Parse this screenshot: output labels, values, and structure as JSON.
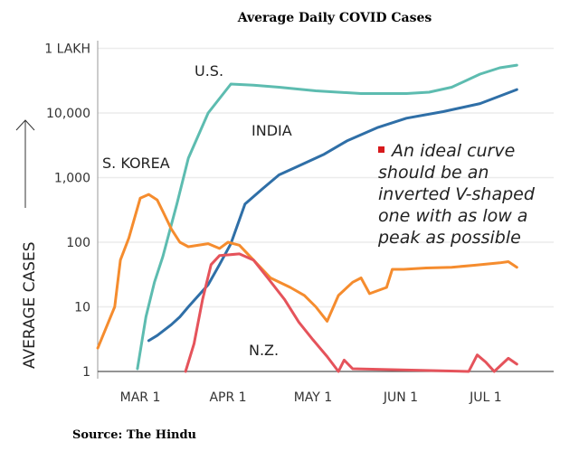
{
  "chart_data": {
    "type": "line",
    "title": "Average Daily COVID Cases",
    "ylabel": "AVERAGE CASES",
    "yscale": "log",
    "ylim": [
      1,
      100000
    ],
    "yticks": [
      1,
      10,
      100,
      1000,
      10000,
      100000
    ],
    "ytick_labels": [
      "1",
      "10",
      "100",
      "1,000",
      "10,000",
      "1 LAKH"
    ],
    "xlim": [
      "Feb 15",
      "Jul 20"
    ],
    "xticks": [
      "Mar 1",
      "Apr 1",
      "May 1",
      "Jun 1",
      "Jul 1"
    ],
    "xtick_labels": [
      "MAR 1",
      "APR 1",
      "MAY 1",
      "JUN 1",
      "JUL 1"
    ],
    "grid": true,
    "series": [
      {
        "name": "U.S.",
        "color": "#5dbcb0",
        "x": [
          "Feb 29",
          "Mar 3",
          "Mar 6",
          "Mar 9",
          "Mar 14",
          "Mar 18",
          "Mar 25",
          "Apr 2",
          "Apr 10",
          "Apr 19",
          "May 2",
          "May 18",
          "Jun 3",
          "Jun 11",
          "Jun 19",
          "Jun 29",
          "Jul 6",
          "Jul 12"
        ],
        "y": [
          1.1,
          7,
          24,
          60,
          400,
          2000,
          10000,
          28000,
          27000,
          25000,
          22000,
          20000,
          20000,
          21000,
          25000,
          40000,
          50000,
          55000
        ]
      },
      {
        "name": "INDIA",
        "color": "#2f6fa7",
        "x": [
          "Mar 4",
          "Mar 7",
          "Mar 12",
          "Mar 15",
          "Mar 18",
          "Mar 25",
          "Mar 29",
          "Apr 2",
          "Apr 7",
          "Apr 13",
          "Apr 19",
          "Apr 25",
          "May 5",
          "May 13",
          "May 24",
          "Jun 3",
          "Jun 16",
          "Jun 29",
          "Jul 12"
        ],
        "y": [
          3,
          3.6,
          5.3,
          7,
          10,
          22,
          45,
          95,
          390,
          660,
          1100,
          1450,
          2300,
          3700,
          6000,
          8300,
          10500,
          14000,
          23000
        ]
      },
      {
        "name": "S. KOREA",
        "color": "#f58c2e",
        "x": [
          "Feb 15",
          "Feb 21",
          "Feb 23",
          "Feb 26",
          "Mar 1",
          "Mar 4",
          "Mar 7",
          "Mar 9",
          "Mar 12",
          "Mar 15",
          "Mar 18",
          "Mar 25",
          "Mar 29",
          "Apr 1",
          "Apr 5",
          "Apr 10",
          "Apr 16",
          "Apr 23",
          "Apr 28",
          "May 2",
          "May 6",
          "May 10",
          "May 15",
          "May 18",
          "May 21",
          "May 27",
          "May 29",
          "Jun 2",
          "Jun 10",
          "Jun 19",
          "Jun 27",
          "Jul 6",
          "Jul 9",
          "Jul 12"
        ],
        "y": [
          2.3,
          10,
          53,
          117,
          480,
          550,
          450,
          300,
          160,
          100,
          85,
          95,
          80,
          100,
          90,
          53,
          28,
          20,
          15,
          10,
          6,
          15,
          24,
          28,
          16,
          20,
          38,
          38,
          40,
          41,
          44,
          48,
          50,
          41
        ]
      },
      {
        "name": "N.Z.",
        "color": "#e5535b",
        "x": [
          "Mar 17",
          "Mar 20",
          "Mar 23",
          "Mar 26",
          "Mar 29",
          "Apr 5",
          "Apr 10",
          "Apr 15",
          "Apr 21",
          "Apr 26",
          "May 1",
          "May 6",
          "May 10",
          "May 12",
          "May 15",
          "Jun 25",
          "Jun 28",
          "Jul 1",
          "Jul 4",
          "Jul 9",
          "Jul 12"
        ],
        "y": [
          1,
          2.7,
          13,
          45,
          62,
          66,
          53,
          28,
          13,
          5.8,
          3.1,
          1.7,
          1,
          1.5,
          1.1,
          1,
          1.8,
          1.4,
          1,
          1.6,
          1.3
        ]
      }
    ],
    "annotation": "An ideal curve should be an inverted V-shaped one with as low a peak as possible"
  },
  "source": "Source:  The Hindu"
}
